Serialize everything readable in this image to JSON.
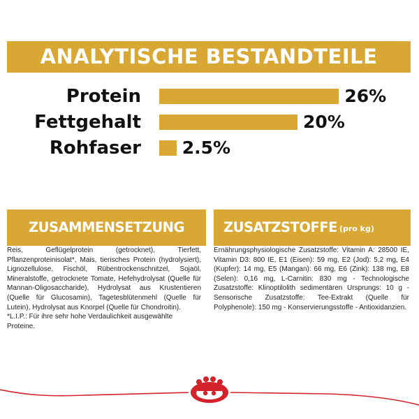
{
  "header": {
    "title": "ANALYTISCHE BESTANDTEILE"
  },
  "nutrients": [
    {
      "label": "Protein",
      "value_text": "26%",
      "value": 26
    },
    {
      "label": "Fettgehalt",
      "value_text": "20%",
      "value": 20
    },
    {
      "label": "Rohfaser",
      "value_text": "2.5%",
      "value": 2.5
    }
  ],
  "composition": {
    "title": "ZUSAMMENSETZUNG",
    "text": "Reis, Geflügelprotein (getrocknet), Tierfett, Pflanzenproteinisolat*, Mais, tierisches Protein (hydrolysiert), Lignozellulose, Fischöl, Rübentrockenschnitzel, Sojaöl, Mineralstoffe, getrocknete Tomate, Hefehydrolysat (Quelle für Mannan-Oligosaccharide), Hydrolysat aus Krustentieren (Quelle für Glucosamin), Tagetesblütenmehl (Quelle für Lutein), Hydrolysat aus Knorpel (Quelle für Chondroitin).",
    "footnote": "*L.I.P.: Für ihre sehr hohe Verdaulichkeit ausgewählte Proteine."
  },
  "additives": {
    "title": "ZUSATZSTOFFE",
    "title_suffix": "(pro kg)",
    "text": "Ernährungsphysiologische Zusatzstoffe: Vitamin A: 28500 IE, Vitamin D3: 800 IE, E1 (Eisen): 59 mg, E2 (Jod): 5,2 mg, E4 (Kupfer): 14 mg, E5 (Mangan): 66 mg, E6 (Zink): 138 mg, E8 (Selen): 0,16 mg, L-Carnitin: 830 mg - Technologische Zusatzstoffe: Klinoptilolith sedimentären Ursprungs: 10 g - Sensorische Zusatzstoffe: Tee-Extrakt (Quelle für Polyphenole): 150 mg - Konservierungsstoffe - Antioxidanzien."
  },
  "colors": {
    "accent": "#d9a734",
    "brand_red": "#d2232a"
  },
  "logo": {
    "name": "royal-canin-crown"
  }
}
